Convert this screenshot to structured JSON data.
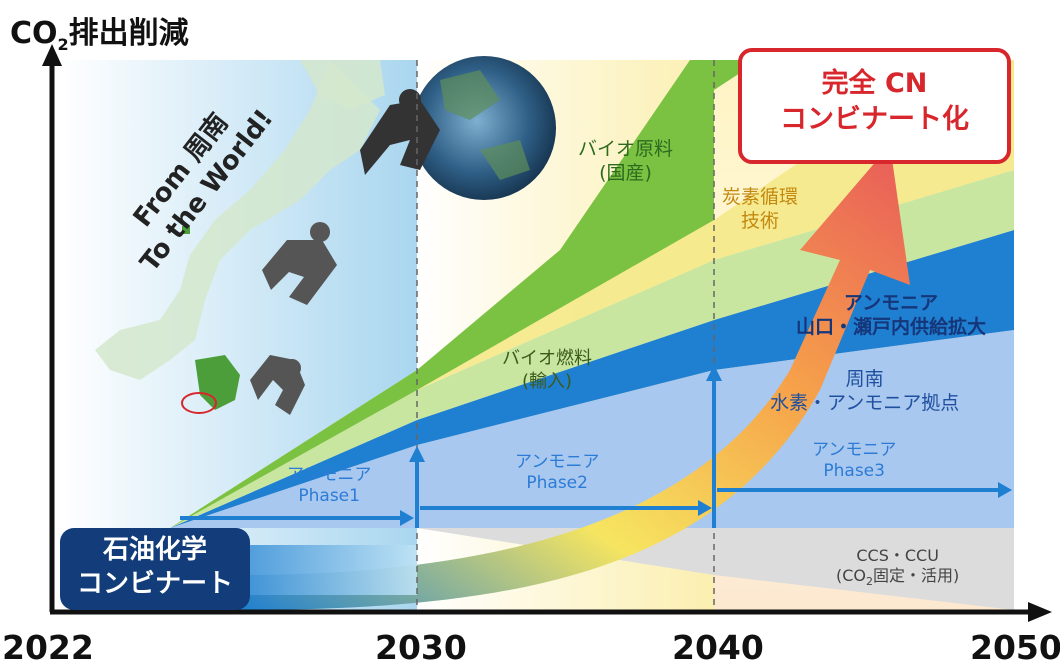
{
  "y_axis_title": {
    "prefix": "CO",
    "subscript": "2",
    "suffix": "排出削減"
  },
  "years": [
    "2022",
    "2030",
    "2040",
    "2050"
  ],
  "from_text": {
    "line1": "From 周南",
    "line2": "To the World!"
  },
  "goal_box": {
    "line1": "完全 CN",
    "line2": "コンビナート化"
  },
  "start_box": {
    "line1": "石油化学",
    "line2": "コンビナート"
  },
  "bands": {
    "bio_feed": {
      "line1": "バイオ原料",
      "line2": "(国産)"
    },
    "carbon_cycle": {
      "line1": "炭素循環",
      "line2": "技術"
    },
    "ammonia_region": {
      "line1": "アンモニア",
      "line2": "山口・瀬戸内供給拡大"
    },
    "shunan_hub": {
      "line1": "周南",
      "line2": "水素・アンモニア拠点"
    },
    "bio_fuel": {
      "line1": "バイオ燃料",
      "line2": "(輸入)"
    },
    "ccs": {
      "line1": "CCS・CCU",
      "line2_prefix": "(CO",
      "line2_sub": "2",
      "line2_suffix": "固定・活用)"
    }
  },
  "phases": [
    {
      "line1": "アンモニア",
      "line2": "Phase1"
    },
    {
      "line1": "アンモニア",
      "line2": "Phase2"
    },
    {
      "line1": "アンモニア",
      "line2": "Phase3"
    }
  ],
  "colors": {
    "bio_green": "#7cc242",
    "light_green": "#c8e6a0",
    "yellow": "#f5e98a",
    "blue": "#1f7fd1",
    "light_blue": "#a9c8ef",
    "gray_band": "#dcdcdc",
    "red": "#d8262d",
    "navy": "#123d7a"
  }
}
